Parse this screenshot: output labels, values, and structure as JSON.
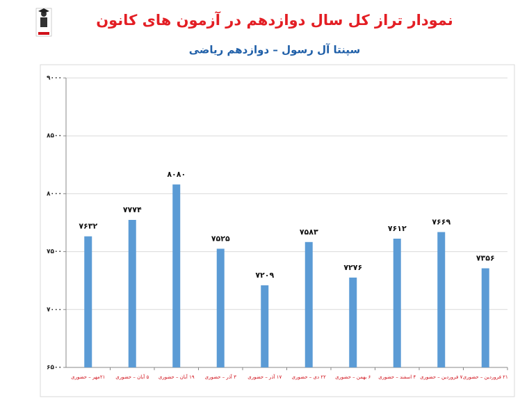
{
  "chart_data": {
    "type": "bar",
    "title": "نمودار تراز کل سال دوازدهم در آزمون های کانون",
    "subtitle": "سپنتا آل رسول – دوازدهم ریاضی",
    "categories": [
      "۲۱مهر – حضوری",
      "۵ آبان – حضوری",
      "۱۹ آبان – حضوری",
      "۳ آذر – حضوری",
      "۱۷ آذر – حضوری",
      "۲۲ دی – حضوری",
      "۶ بهمن – حضوری",
      "۴ اسفند – حضوری",
      "۷ فروردین – حضوری",
      "۲۱ فروردین – حضوری"
    ],
    "values": [
      7632,
      7774,
      8080,
      7525,
      7209,
      7583,
      7276,
      7612,
      7669,
      7356
    ],
    "value_labels": [
      "۷۶۳۲",
      "۷۷۷۴",
      "۸۰۸۰",
      "۷۵۲۵",
      "۷۲۰۹",
      "۷۵۸۳",
      "۷۲۷۶",
      "۷۶۱۲",
      "۷۶۶۹",
      "۷۳۵۶"
    ],
    "color": "#5b9bd5",
    "ylim": [
      6500,
      9000
    ],
    "yticks": [
      {
        "value": 6500,
        "label": "۶۵۰۰"
      },
      {
        "value": 7000,
        "label": "۷۰۰۰"
      },
      {
        "value": 7500,
        "label": "۷۵۰۰"
      },
      {
        "value": 8000,
        "label": "۸۰۰۰"
      },
      {
        "value": 8500,
        "label": "۸۵۰۰"
      },
      {
        "value": 9000,
        "label": "۹۰۰۰"
      }
    ],
    "grid": true
  }
}
